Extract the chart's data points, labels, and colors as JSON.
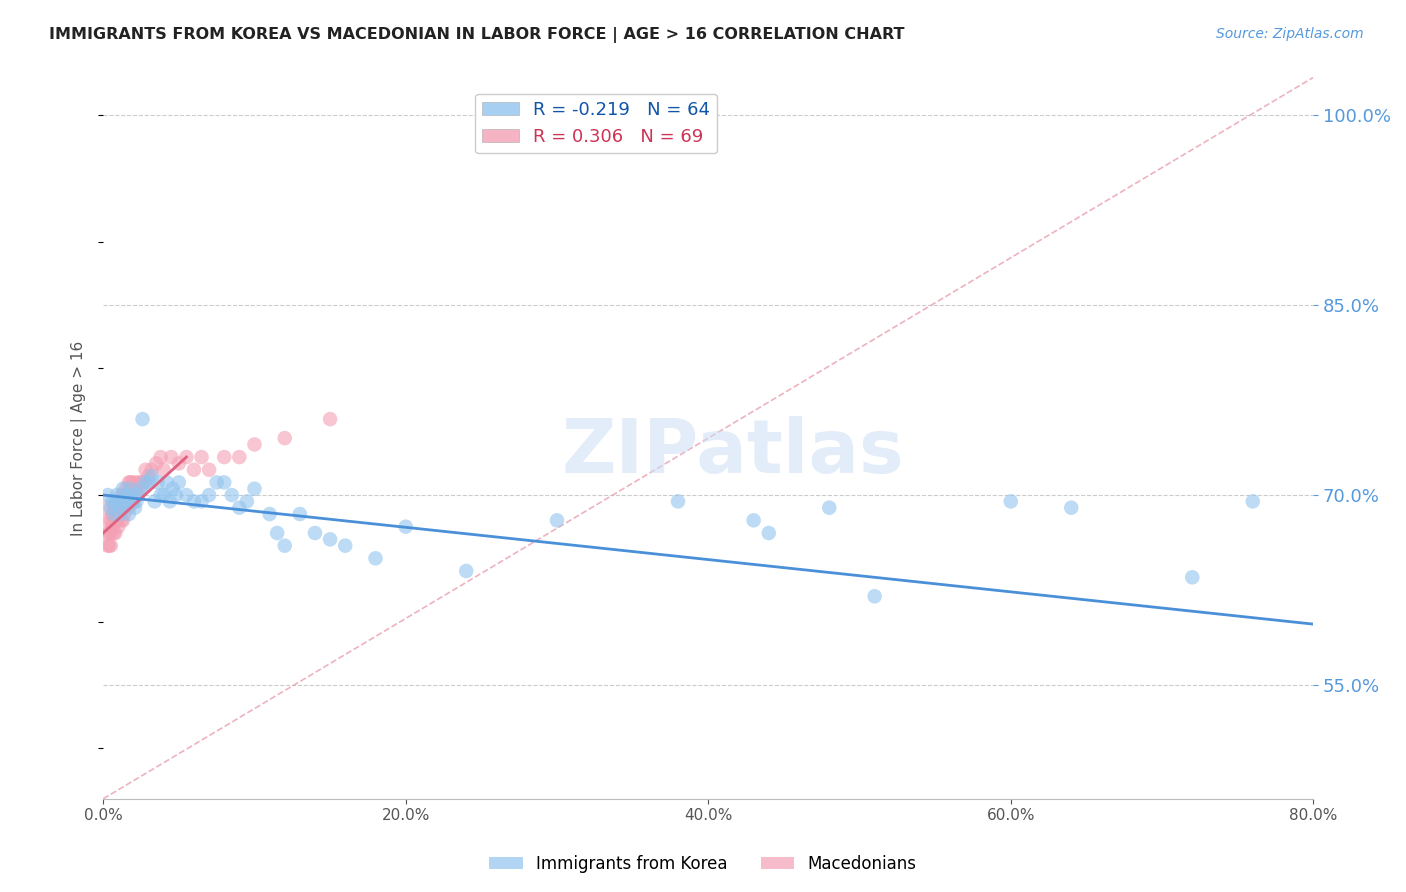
{
  "title": "IMMIGRANTS FROM KOREA VS MACEDONIAN IN LABOR FORCE | AGE > 16 CORRELATION CHART",
  "source": "Source: ZipAtlas.com",
  "ylabel": "In Labor Force | Age > 16",
  "xmin": 0.0,
  "xmax": 0.8,
  "ymin": 0.46,
  "ymax": 1.03,
  "yticks": [
    0.55,
    0.7,
    0.85,
    1.0
  ],
  "xticks": [
    0.0,
    0.2,
    0.4,
    0.6,
    0.8
  ],
  "legend_r1": "R = -0.219",
  "legend_n1": "N = 64",
  "legend_r2": "R = 0.306",
  "legend_n2": "N = 69",
  "korea_color": "#91c4ee",
  "macedonian_color": "#f4a0b5",
  "trend_korea_color": "#4a90d9",
  "trend_macedonian_color": "#e06080",
  "watermark": "ZIPatlas",
  "korea_scatter_x": [
    0.003,
    0.005,
    0.006,
    0.007,
    0.008,
    0.009,
    0.01,
    0.011,
    0.012,
    0.013,
    0.014,
    0.015,
    0.016,
    0.017,
    0.018,
    0.019,
    0.02,
    0.021,
    0.022,
    0.023,
    0.025,
    0.026,
    0.028,
    0.03,
    0.032,
    0.034,
    0.036,
    0.038,
    0.04,
    0.042,
    0.044,
    0.046,
    0.048,
    0.05,
    0.055,
    0.06,
    0.065,
    0.07,
    0.075,
    0.08,
    0.085,
    0.09,
    0.095,
    0.1,
    0.11,
    0.115,
    0.12,
    0.13,
    0.14,
    0.15,
    0.16,
    0.18,
    0.2,
    0.24,
    0.3,
    0.38,
    0.43,
    0.44,
    0.48,
    0.51,
    0.6,
    0.64,
    0.72,
    0.76
  ],
  "korea_scatter_y": [
    0.7,
    0.69,
    0.695,
    0.685,
    0.695,
    0.7,
    0.695,
    0.685,
    0.695,
    0.705,
    0.69,
    0.7,
    0.695,
    0.685,
    0.705,
    0.7,
    0.695,
    0.69,
    0.695,
    0.7,
    0.705,
    0.76,
    0.71,
    0.71,
    0.715,
    0.695,
    0.71,
    0.7,
    0.7,
    0.71,
    0.695,
    0.705,
    0.7,
    0.71,
    0.7,
    0.695,
    0.695,
    0.7,
    0.71,
    0.71,
    0.7,
    0.69,
    0.695,
    0.705,
    0.685,
    0.67,
    0.66,
    0.685,
    0.67,
    0.665,
    0.66,
    0.65,
    0.675,
    0.64,
    0.68,
    0.695,
    0.68,
    0.67,
    0.69,
    0.62,
    0.695,
    0.69,
    0.635,
    0.695
  ],
  "macedonian_scatter_x": [
    0.002,
    0.002,
    0.003,
    0.003,
    0.004,
    0.004,
    0.005,
    0.005,
    0.005,
    0.006,
    0.006,
    0.007,
    0.007,
    0.007,
    0.008,
    0.008,
    0.008,
    0.009,
    0.009,
    0.01,
    0.01,
    0.01,
    0.011,
    0.011,
    0.012,
    0.012,
    0.012,
    0.013,
    0.013,
    0.013,
    0.014,
    0.014,
    0.015,
    0.015,
    0.015,
    0.016,
    0.016,
    0.017,
    0.017,
    0.018,
    0.018,
    0.019,
    0.019,
    0.02,
    0.02,
    0.021,
    0.022,
    0.023,
    0.024,
    0.025,
    0.026,
    0.027,
    0.028,
    0.03,
    0.032,
    0.035,
    0.038,
    0.04,
    0.045,
    0.05,
    0.055,
    0.06,
    0.065,
    0.07,
    0.08,
    0.09,
    0.1,
    0.12,
    0.15
  ],
  "macedonian_scatter_y": [
    0.69,
    0.67,
    0.68,
    0.66,
    0.67,
    0.66,
    0.66,
    0.67,
    0.68,
    0.675,
    0.685,
    0.68,
    0.69,
    0.67,
    0.68,
    0.69,
    0.67,
    0.68,
    0.695,
    0.685,
    0.695,
    0.675,
    0.695,
    0.685,
    0.695,
    0.68,
    0.7,
    0.69,
    0.7,
    0.68,
    0.7,
    0.685,
    0.7,
    0.69,
    0.705,
    0.7,
    0.695,
    0.71,
    0.69,
    0.71,
    0.7,
    0.71,
    0.695,
    0.705,
    0.695,
    0.705,
    0.71,
    0.7,
    0.71,
    0.705,
    0.71,
    0.71,
    0.72,
    0.715,
    0.72,
    0.725,
    0.73,
    0.72,
    0.73,
    0.725,
    0.73,
    0.72,
    0.73,
    0.72,
    0.73,
    0.73,
    0.74,
    0.745,
    0.76
  ],
  "korea_trend_x": [
    0.0,
    0.8
  ],
  "korea_trend_y": [
    0.7,
    0.598
  ],
  "macedonian_trend_x": [
    0.0,
    0.055
  ],
  "macedonian_trend_y": [
    0.67,
    0.73
  ],
  "ref_line_x": [
    0.0,
    0.8
  ],
  "ref_line_y": [
    0.46,
    1.03
  ],
  "background_color": "#ffffff",
  "grid_color": "#cccccc",
  "right_axis_color": "#5599dd",
  "title_color": "#222222"
}
